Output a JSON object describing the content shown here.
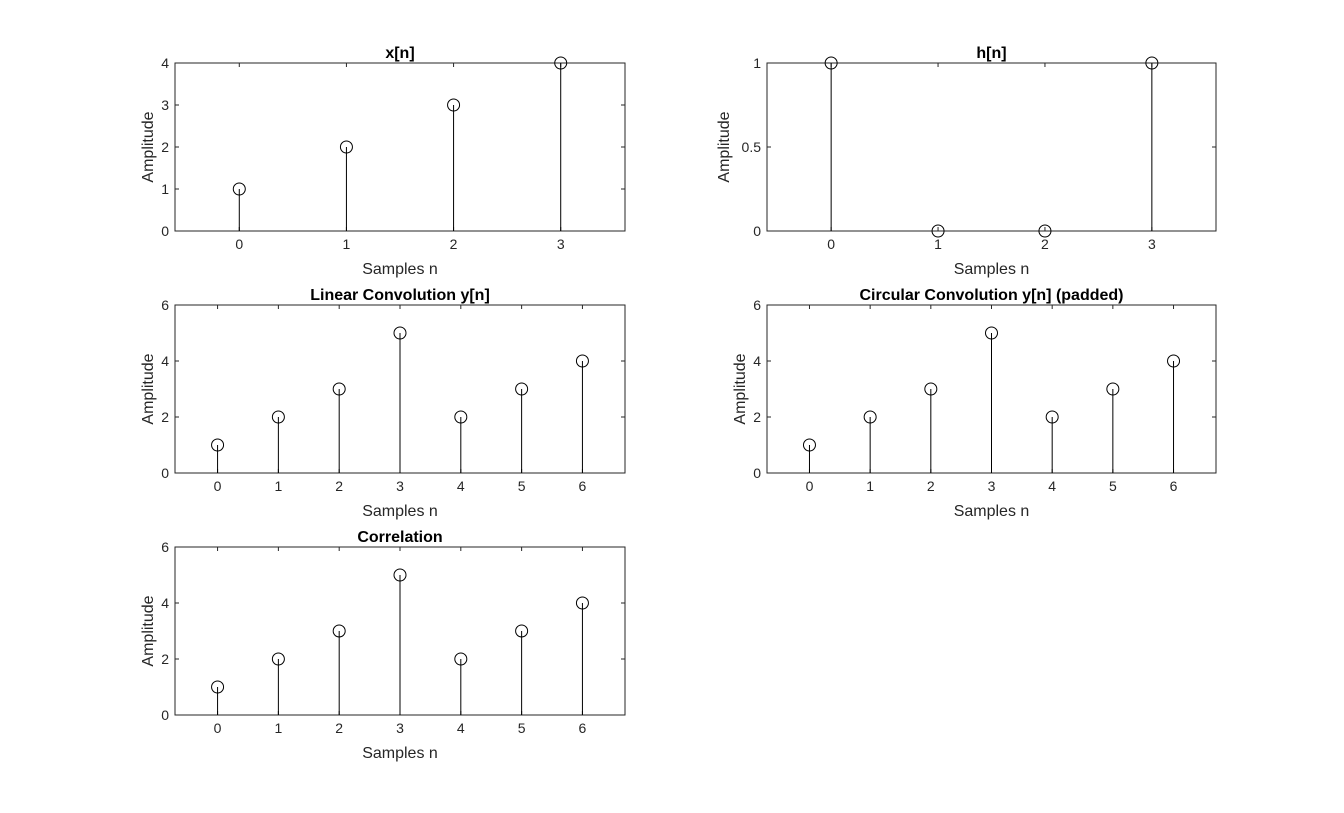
{
  "colors": {
    "stem": "#000000",
    "axes": "#262626",
    "background": "#ffffff"
  },
  "chart_data": [
    {
      "type": "stem",
      "title": "x[n]",
      "xlabel": "Samples n",
      "ylabel": "Amplitude",
      "x": [
        0,
        1,
        2,
        3
      ],
      "values": [
        1,
        2,
        3,
        4
      ],
      "xlim": [
        -0.6,
        3.6
      ],
      "ylim": [
        0,
        4
      ],
      "xticks": [
        0,
        1,
        2,
        3
      ],
      "yticks": [
        0,
        1,
        2,
        3,
        4
      ],
      "ytick_labels": [
        "0",
        "1",
        "2",
        "3",
        "4"
      ],
      "grid": false
    },
    {
      "type": "stem",
      "title": "h[n]",
      "xlabel": "Samples n",
      "ylabel": "Amplitude",
      "x": [
        0,
        1,
        2,
        3
      ],
      "values": [
        1,
        0,
        0,
        1
      ],
      "xlim": [
        -0.6,
        3.6
      ],
      "ylim": [
        0,
        1
      ],
      "xticks": [
        0,
        1,
        2,
        3
      ],
      "yticks": [
        0,
        0.5,
        1
      ],
      "ytick_labels": [
        "0",
        "0.5",
        "1"
      ],
      "grid": false
    },
    {
      "type": "stem",
      "title": "Linear Convolution y[n]",
      "xlabel": "Samples n",
      "ylabel": "Amplitude",
      "x": [
        0,
        1,
        2,
        3,
        4,
        5,
        6
      ],
      "values": [
        1,
        2,
        3,
        5,
        2,
        3,
        4
      ],
      "xlim": [
        -0.7,
        6.7
      ],
      "ylim": [
        0,
        6
      ],
      "xticks": [
        0,
        1,
        2,
        3,
        4,
        5,
        6
      ],
      "yticks": [
        0,
        2,
        4,
        6
      ],
      "ytick_labels": [
        "0",
        "2",
        "4",
        "6"
      ],
      "grid": false
    },
    {
      "type": "stem",
      "title": "Circular Convolution y[n] (padded)",
      "xlabel": "Samples n",
      "ylabel": "Amplitude",
      "x": [
        0,
        1,
        2,
        3,
        4,
        5,
        6
      ],
      "values": [
        1,
        2,
        3,
        5,
        2,
        3,
        4
      ],
      "xlim": [
        -0.7,
        6.7
      ],
      "ylim": [
        0,
        6
      ],
      "xticks": [
        0,
        1,
        2,
        3,
        4,
        5,
        6
      ],
      "yticks": [
        0,
        2,
        4,
        6
      ],
      "ytick_labels": [
        "0",
        "2",
        "4",
        "6"
      ],
      "grid": false
    },
    {
      "type": "stem",
      "title": "Correlation",
      "xlabel": "Samples n",
      "ylabel": "Amplitude",
      "x": [
        0,
        1,
        2,
        3,
        4,
        5,
        6
      ],
      "values": [
        1,
        2,
        3,
        5,
        2,
        3,
        4
      ],
      "xlim": [
        -0.7,
        6.7
      ],
      "ylim": [
        0,
        6
      ],
      "xticks": [
        0,
        1,
        2,
        3,
        4,
        5,
        6
      ],
      "yticks": [
        0,
        2,
        4,
        6
      ],
      "ytick_labels": [
        "0",
        "2",
        "4",
        "6"
      ],
      "grid": false
    }
  ]
}
